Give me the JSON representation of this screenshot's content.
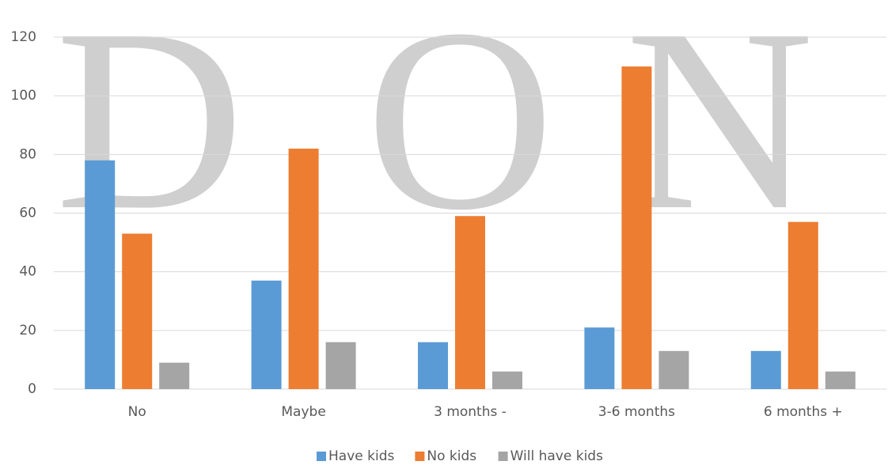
{
  "chart_data": {
    "type": "bar",
    "watermark": [
      "D",
      "O",
      "N"
    ],
    "categories": [
      "No",
      "Maybe",
      "3 months -",
      "3-6 months",
      "6 months +"
    ],
    "series": [
      {
        "name": "Have kids",
        "color": "#5b9bd5",
        "values": [
          78,
          37,
          16,
          21,
          13
        ]
      },
      {
        "name": "No kids",
        "color": "#ed7d31",
        "values": [
          53,
          82,
          59,
          110,
          57
        ]
      },
      {
        "name": "Will have kids",
        "color": "#a5a5a5",
        "values": [
          9,
          16,
          6,
          13,
          6
        ]
      }
    ],
    "ylim": [
      0,
      120
    ],
    "yticks": [
      0,
      20,
      40,
      60,
      80,
      100,
      120
    ],
    "grid": true,
    "legend": "bottom"
  }
}
